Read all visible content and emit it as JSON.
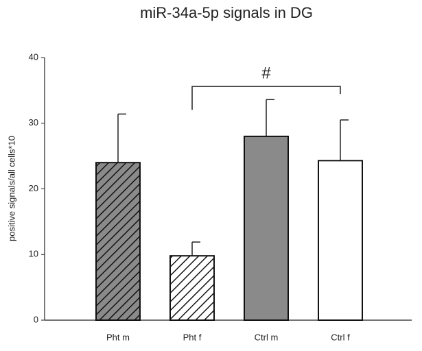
{
  "chart_data": {
    "type": "bar",
    "title": "miR-34a-5p signals in DG",
    "y_label": "positive signals/all cells*10",
    "categories": [
      "Pht m",
      "Pht f",
      "Ctrl m",
      "Ctrl f"
    ],
    "values": [
      24.0,
      9.8,
      28.0,
      24.3
    ],
    "errors": [
      7.4,
      2.1,
      5.6,
      6.2
    ],
    "colors": [
      "#8a8a8a",
      "#ffffff",
      "#8a8a8a",
      "#ffffff"
    ],
    "hatch": [
      true,
      true,
      false,
      false
    ],
    "ylim": [
      0,
      40
    ],
    "yticks": [
      0,
      10,
      20,
      30,
      40
    ],
    "grid": false,
    "annotations": [
      {
        "text": "#",
        "from": 1,
        "to": 3,
        "y": 35.6
      }
    ]
  }
}
